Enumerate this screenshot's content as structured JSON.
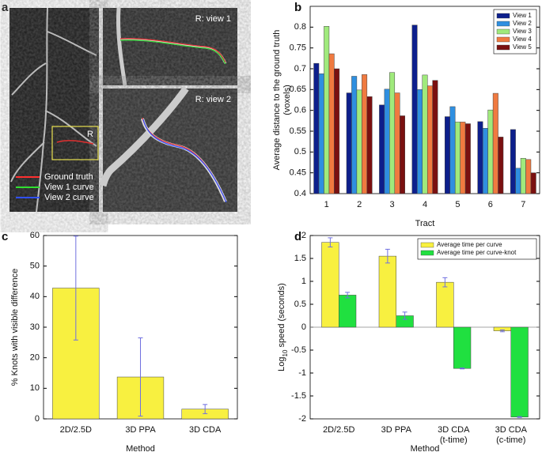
{
  "panel_a": {
    "panel_label": "a",
    "roi_label": "R",
    "legend": [
      "Ground truth",
      "View 1 curve",
      "View 2 curve"
    ],
    "legend_colors": [
      "#ff3030",
      "#30e030",
      "#3050ff"
    ],
    "insets": [
      "R: view 1",
      "R: view 2"
    ]
  },
  "chart_data": [
    {
      "type": "bar",
      "panel_label": "b",
      "xlabel": "Tract",
      "ylabel": [
        "Average distance to the ground truth",
        "(voxels)"
      ],
      "categories": [
        [
          "1"
        ],
        [
          "2"
        ],
        [
          "3"
        ],
        [
          "4"
        ],
        [
          "5"
        ],
        [
          "6"
        ],
        [
          "7"
        ]
      ],
      "series": [
        {
          "name": "View 1",
          "color": "#0d1f8c",
          "values": [
            0.713,
            0.642,
            0.613,
            0.805,
            0.585,
            0.573,
            0.554
          ]
        },
        {
          "name": "View 2",
          "color": "#2f8fe0",
          "values": [
            0.688,
            0.682,
            0.651,
            0.65,
            0.609,
            0.557,
            0.461
          ]
        },
        {
          "name": "View 3",
          "color": "#a0ea7c",
          "values": [
            0.802,
            0.649,
            0.691,
            0.685,
            0.572,
            0.601,
            0.485
          ]
        },
        {
          "name": "View 4",
          "color": "#f07a40",
          "values": [
            0.736,
            0.686,
            0.642,
            0.659,
            0.572,
            0.641,
            0.482
          ]
        },
        {
          "name": "View 5",
          "color": "#7a1010",
          "values": [
            0.7,
            0.633,
            0.587,
            0.672,
            0.568,
            0.536,
            0.45
          ]
        }
      ],
      "ylim": [
        0.4,
        0.85
      ],
      "yticks": [
        0.4,
        0.45,
        0.5,
        0.55,
        0.6,
        0.65,
        0.7,
        0.75,
        0.8
      ],
      "legend": "upper right",
      "grid": false
    },
    {
      "type": "bar",
      "panel_label": "c",
      "xlabel": "Method",
      "ylabel": [
        "% Knots with visible difference"
      ],
      "categories": [
        [
          "2D/2.5D"
        ],
        [
          "3D PPA"
        ],
        [
          "3D CDA"
        ]
      ],
      "series": [
        {
          "color": "#f8f040",
          "values": [
            42.8,
            13.7,
            3.2
          ],
          "errors": [
            17,
            12.8,
            1.5
          ]
        }
      ],
      "error_color": "#7070e0",
      "ylim": [
        0,
        60
      ],
      "yticks": [
        0,
        10,
        20,
        30,
        40,
        50,
        60
      ],
      "grid": false
    },
    {
      "type": "bar",
      "panel_label": "d",
      "xlabel": "Method",
      "ylabel_parts": [
        "Log",
        "10",
        " speed (seconds)"
      ],
      "categories": [
        [
          "2D/2.5D"
        ],
        [
          "3D PPA"
        ],
        [
          "3D CDA",
          "(t-time)"
        ],
        [
          "3D CDA",
          "(c-time)"
        ]
      ],
      "series": [
        {
          "name": "Average time per curve",
          "color": "#f8f040",
          "values": [
            1.85,
            1.55,
            0.98,
            -0.08
          ],
          "errors": [
            0.1,
            0.15,
            0.1,
            0.02
          ]
        },
        {
          "name": "Average time per curve-knot",
          "color": "#20e040",
          "values": [
            0.7,
            0.25,
            -0.9,
            -1.96
          ],
          "errors": [
            0.06,
            0.08,
            0.01,
            0.01
          ]
        }
      ],
      "error_color": "#7070e0",
      "ylim": [
        -2,
        2
      ],
      "yticks": [
        -2,
        -1.5,
        -1,
        -0.5,
        0,
        0.5,
        1,
        1.5,
        2
      ],
      "legend": "upper right",
      "zero_line": true,
      "grid": false
    }
  ]
}
